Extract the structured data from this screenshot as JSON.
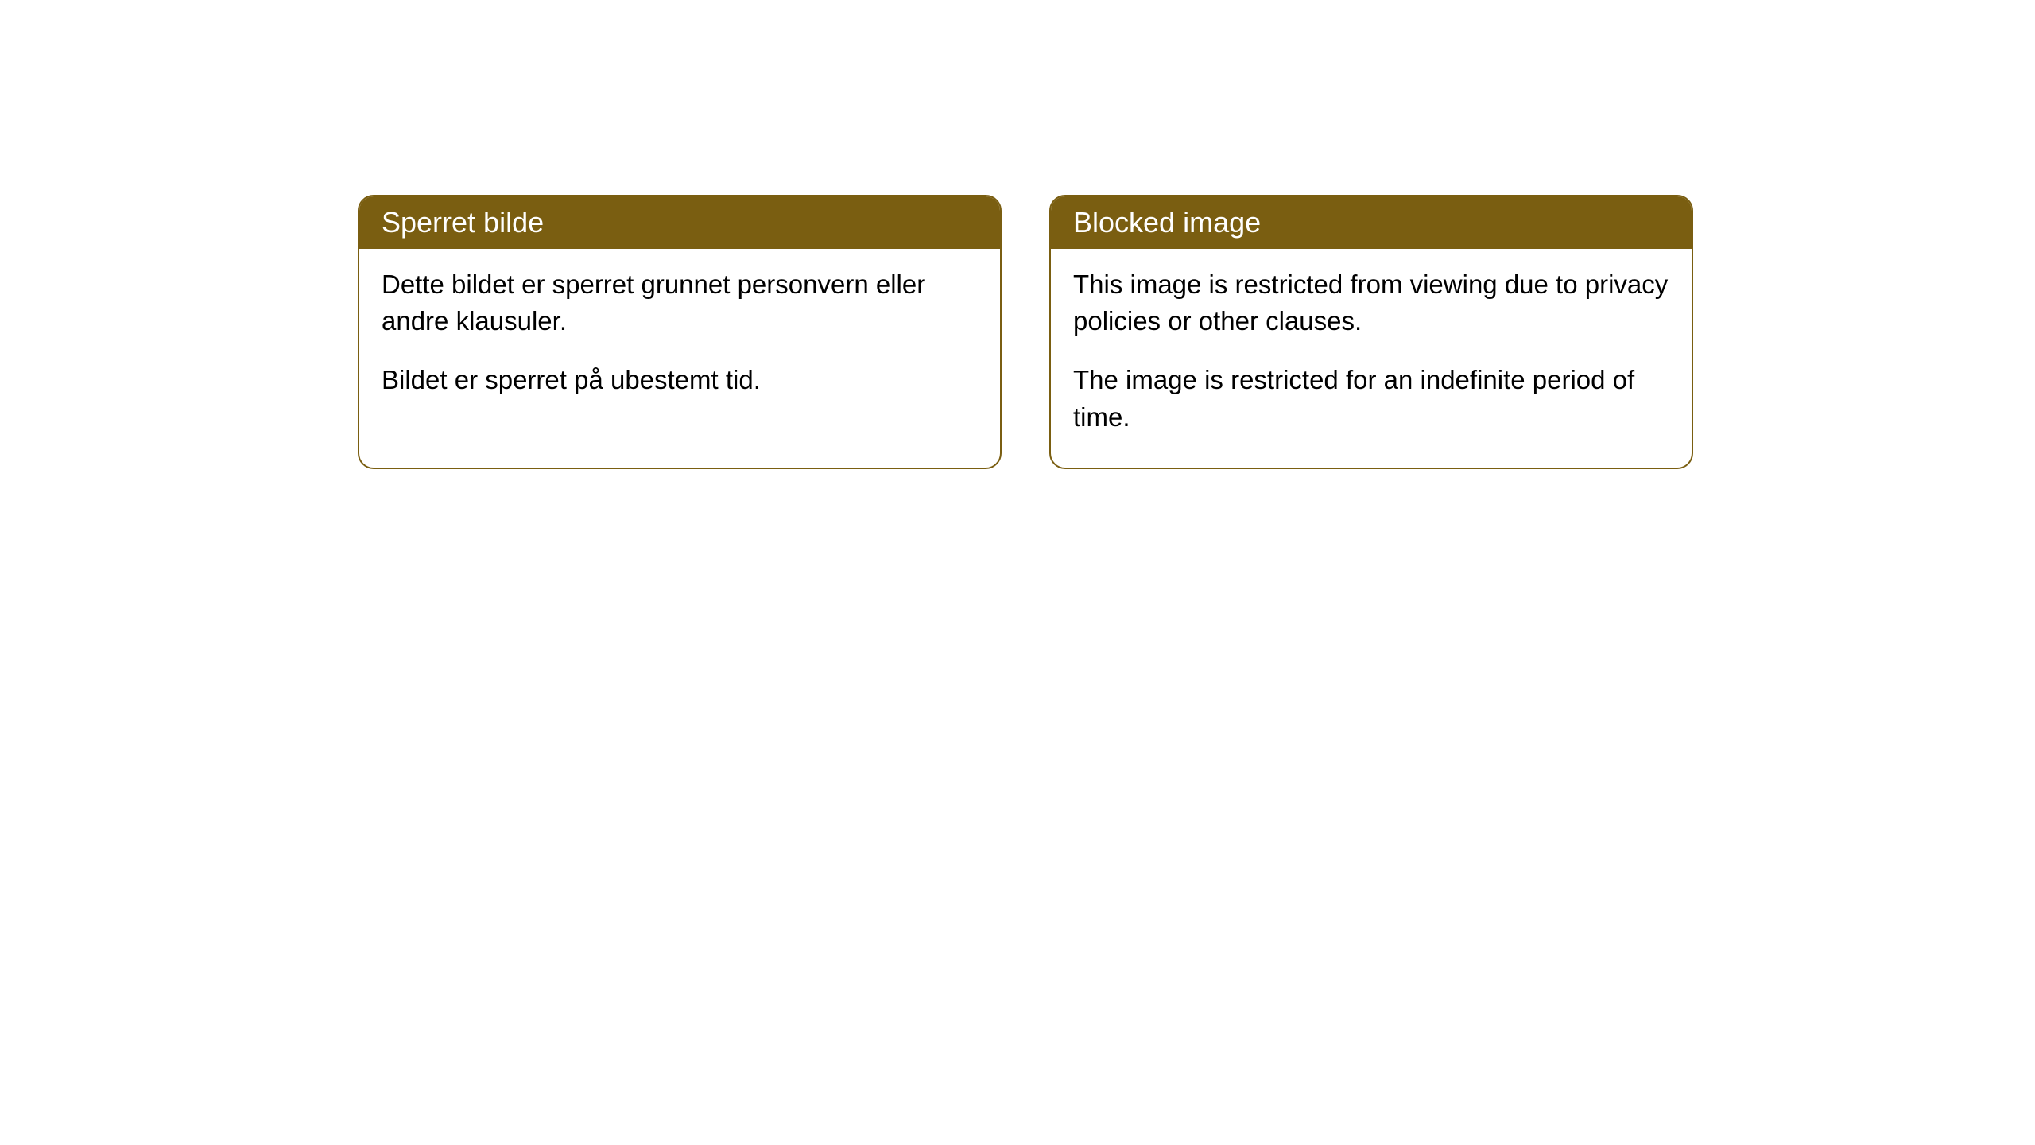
{
  "cards": [
    {
      "title": "Sperret bilde",
      "paragraph1": "Dette bildet er sperret grunnet personvern eller andre klausuler.",
      "paragraph2": "Bildet er sperret på ubestemt tid."
    },
    {
      "title": "Blocked image",
      "paragraph1": "This image is restricted from viewing due to privacy policies or other clauses.",
      "paragraph2": "The image is restricted for an indefinite period of time."
    }
  ],
  "styling": {
    "header_background_color": "#7a5e11",
    "header_text_color": "#ffffff",
    "border_color": "#7a5e11",
    "body_background_color": "#ffffff",
    "body_text_color": "#000000",
    "border_radius": 20,
    "title_fontsize": 36,
    "body_fontsize": 33
  }
}
